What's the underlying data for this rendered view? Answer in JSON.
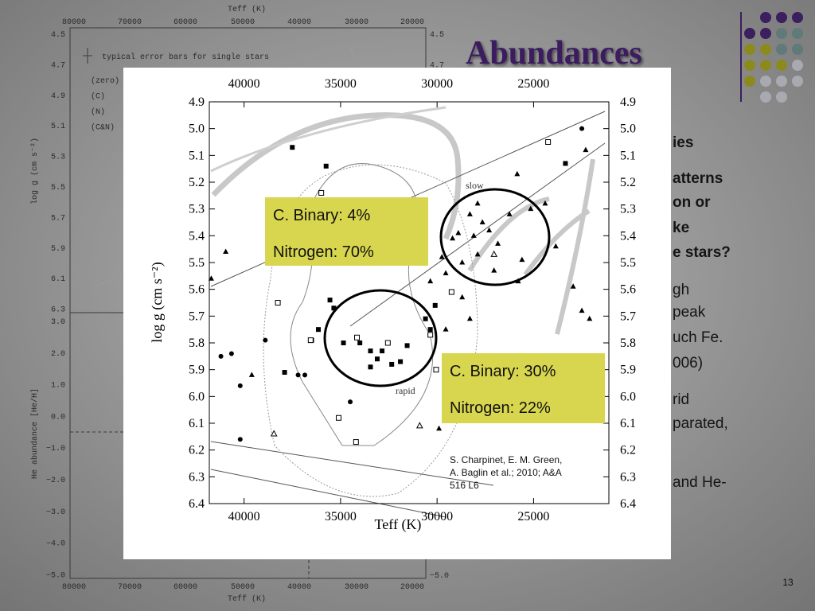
{
  "slide": {
    "title": "Abundances",
    "page_number": "13",
    "text_fragments": [
      "ies",
      "atterns",
      "on or",
      "ke",
      "e stars?",
      "gh",
      "peak",
      "uch Fe.",
      "006)",
      "rid",
      "parated,",
      "and He-"
    ]
  },
  "background_figure": {
    "x_label": "Teff (K)",
    "x_ticks": [
      80000,
      70000,
      60000,
      50000,
      40000,
      30000,
      20000
    ],
    "upper_y_label": "log g (cm s⁻²)",
    "upper_y_ticks": [
      "4.5",
      "4.7",
      "4.9",
      "5.1",
      "5.3",
      "5.5",
      "5.7",
      "5.9",
      "6.1",
      "6.3"
    ],
    "upper_right_ticks": [
      "4.5",
      "4.7"
    ],
    "lower_y_label": "He abundance [He/H]",
    "lower_y_ticks": [
      "3.0",
      "2.0",
      "1.0",
      "0.0",
      "−1.0",
      "−2.0",
      "−3.0",
      "−4.0",
      "−5.0"
    ],
    "lower_right_ticks": [
      "−5.0"
    ],
    "error_bar_note": "typical error bars for single stars",
    "legend": [
      "(zero)",
      "(C)",
      "(N)",
      "(C&N)"
    ]
  },
  "chart_data": {
    "type": "scatter",
    "x_label": "Teff (K)",
    "y_label": "log g (cm s⁻²)",
    "xlim": [
      41800,
      21100
    ],
    "ylim": [
      6.4,
      4.9
    ],
    "xticks": [
      40000,
      35000,
      30000,
      25000
    ],
    "yticks": [
      4.9,
      {
        "value": 5,
        "label": "5.0"
      },
      5.1,
      5.2,
      5.3,
      5.4,
      5.5,
      5.6,
      5.7,
      5.8,
      5.9,
      {
        "value": 6,
        "label": "6.0"
      },
      6.1,
      6.2,
      6.3,
      6.4
    ],
    "annotations": [
      "slow",
      "rapid"
    ],
    "callouts": [
      [
        "C. Binary: 4%",
        "Nitrogen: 70%"
      ],
      [
        "C. Binary: 30%",
        "Nitrogen: 22%"
      ]
    ],
    "citation": [
      "S. Charpinet, E. M. Green,",
      "A. Baglin et al.; 2010; A&A",
      "516 L6"
    ],
    "series": [
      {
        "marker": "circle",
        "color": "#000000",
        "x": [
          22500,
          41200,
          40650,
          40200,
          40200,
          38900,
          37200,
          36850,
          34500
        ],
        "y": [
          5.0,
          5.85,
          5.84,
          5.96,
          6.16,
          5.79,
          5.92,
          5.92,
          6.02
        ]
      },
      {
        "marker": "square",
        "color": "#000000",
        "x": [
          37500,
          35750,
          35550,
          35350,
          36150,
          36500,
          37900,
          34850,
          34000,
          33450,
          33100,
          32850,
          33450,
          32350,
          31550,
          31900,
          30600,
          30350,
          30100,
          23350
        ],
        "y": [
          5.07,
          5.14,
          5.64,
          5.67,
          5.75,
          5.79,
          5.91,
          5.8,
          5.8,
          5.83,
          5.86,
          5.83,
          5.89,
          5.88,
          5.81,
          5.87,
          5.71,
          5.75,
          5.66,
          5.13
        ]
      },
      {
        "marker": "open-square",
        "color": "#000000",
        "x": [
          36000,
          38250,
          36550,
          34150,
          32550,
          30350,
          30050,
          35100,
          34200,
          29250,
          24250
        ],
        "y": [
          5.24,
          5.65,
          5.79,
          5.78,
          5.8,
          5.77,
          5.9,
          6.08,
          6.17,
          5.61,
          5.05
        ]
      },
      {
        "marker": "triangle",
        "color": "#000000",
        "x": [
          22300,
          25850,
          25150,
          27900,
          28300,
          27650,
          27300,
          28100,
          28900,
          29200,
          26850,
          26250,
          27900,
          29550,
          30350,
          29750,
          28700,
          27050,
          25800,
          23850,
          22950,
          22500,
          25600,
          24400,
          28700,
          29550,
          39600,
          41700,
          40950,
          29900,
          23750,
          22100,
          28300
        ],
        "y": [
          5.08,
          5.17,
          5.3,
          5.28,
          5.32,
          5.35,
          5.38,
          5.4,
          5.39,
          5.41,
          5.43,
          5.32,
          5.47,
          5.54,
          5.57,
          5.48,
          5.5,
          5.53,
          5.57,
          5.44,
          5.59,
          5.68,
          5.49,
          5.28,
          5.63,
          5.75,
          5.92,
          5.56,
          5.46,
          6.12,
          6.02,
          5.71,
          5.71
        ]
      },
      {
        "marker": "open-triangle",
        "color": "#000000",
        "x": [
          27050,
          38450,
          30900
        ],
        "y": [
          5.47,
          6.14,
          6.11
        ]
      }
    ]
  }
}
